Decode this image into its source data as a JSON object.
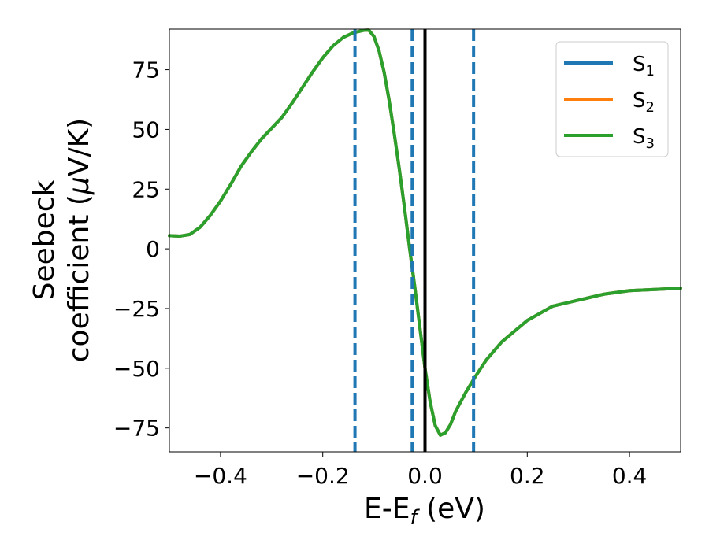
{
  "chart_data": {
    "type": "line",
    "xlabel": {
      "main": "E-E",
      "sub": "f",
      "tail": " (eV)"
    },
    "ylabel": {
      "line1": "Seebeck",
      "line2_pre": "coefficient  (",
      "line2_mu": "μ",
      "line2_post": "V/K)"
    },
    "xlim": [
      -0.5,
      0.5
    ],
    "ylim": [
      -85,
      92
    ],
    "x_ticks": [
      -0.4,
      -0.2,
      0.0,
      0.2,
      0.4
    ],
    "x_tick_labels": [
      "−0.4",
      "−0.2",
      "0.0",
      "0.2",
      "0.4"
    ],
    "y_ticks": [
      75,
      50,
      25,
      0,
      -25,
      -50,
      -75
    ],
    "y_tick_labels": [
      "75",
      "50",
      "25",
      "0",
      "−25",
      "−50",
      "−75"
    ],
    "grid": false,
    "legend_position": "top-right",
    "series": [
      {
        "name": "S",
        "subscript": "1",
        "color": "#1f77b4",
        "x": [
          -0.5,
          -0.48,
          -0.46,
          -0.44,
          -0.42,
          -0.4,
          -0.38,
          -0.36,
          -0.34,
          -0.32,
          -0.3,
          -0.28,
          -0.26,
          -0.24,
          -0.22,
          -0.2,
          -0.18,
          -0.16,
          -0.14,
          -0.12,
          -0.11,
          -0.1,
          -0.09,
          -0.08,
          -0.07,
          -0.06,
          -0.05,
          -0.04,
          -0.03,
          -0.02,
          -0.01,
          0.0,
          0.01,
          0.02,
          0.03,
          0.04,
          0.05,
          0.06,
          0.08,
          0.1,
          0.12,
          0.15,
          0.2,
          0.25,
          0.3,
          0.35,
          0.4,
          0.45,
          0.5
        ],
        "y": [
          5.5,
          5.3,
          6.0,
          9.0,
          14.0,
          20.0,
          27.0,
          34.5,
          40.5,
          46.0,
          50.5,
          55.0,
          61.0,
          67.5,
          74.0,
          80.0,
          85.0,
          88.5,
          90.5,
          91.5,
          91.6,
          89.0,
          83.0,
          74.0,
          62.0,
          48.0,
          33.0,
          17.0,
          0.0,
          -16.0,
          -33.0,
          -50.0,
          -64.0,
          -74.0,
          -78.0,
          -77.0,
          -73.5,
          -68.0,
          -60.0,
          -53.0,
          -46.5,
          -39.0,
          -30.0,
          -24.0,
          -21.5,
          -19.0,
          -17.5,
          -17.0,
          -16.5
        ]
      },
      {
        "name": "S",
        "subscript": "2",
        "color": "#ff7f0e",
        "x": [
          -0.5,
          -0.48,
          -0.46,
          -0.44,
          -0.42,
          -0.4,
          -0.38,
          -0.36,
          -0.34,
          -0.32,
          -0.3,
          -0.28,
          -0.26,
          -0.24,
          -0.22,
          -0.2,
          -0.18,
          -0.16,
          -0.14,
          -0.12,
          -0.11,
          -0.1,
          -0.09,
          -0.08,
          -0.07,
          -0.06,
          -0.05,
          -0.04,
          -0.03,
          -0.02,
          -0.01,
          0.0,
          0.01,
          0.02,
          0.03,
          0.04,
          0.05,
          0.06,
          0.08,
          0.1,
          0.12,
          0.15,
          0.2,
          0.25,
          0.3,
          0.35,
          0.4,
          0.45,
          0.5
        ],
        "y": [
          5.5,
          5.3,
          6.0,
          9.0,
          14.0,
          20.0,
          27.0,
          34.5,
          40.5,
          46.0,
          50.5,
          55.0,
          61.0,
          67.5,
          74.0,
          80.0,
          85.0,
          88.5,
          90.5,
          91.5,
          91.6,
          89.0,
          83.0,
          74.0,
          62.0,
          48.0,
          33.0,
          17.0,
          0.0,
          -16.0,
          -33.0,
          -50.0,
          -64.0,
          -74.0,
          -78.0,
          -77.0,
          -73.5,
          -68.0,
          -60.0,
          -53.0,
          -46.5,
          -39.0,
          -30.0,
          -24.0,
          -21.5,
          -19.0,
          -17.5,
          -17.0,
          -16.5
        ]
      },
      {
        "name": "S",
        "subscript": "3",
        "color": "#2ca02c",
        "x": [
          -0.5,
          -0.48,
          -0.46,
          -0.44,
          -0.42,
          -0.4,
          -0.38,
          -0.36,
          -0.34,
          -0.32,
          -0.3,
          -0.28,
          -0.26,
          -0.24,
          -0.22,
          -0.2,
          -0.18,
          -0.16,
          -0.14,
          -0.12,
          -0.11,
          -0.1,
          -0.09,
          -0.08,
          -0.07,
          -0.06,
          -0.05,
          -0.04,
          -0.03,
          -0.02,
          -0.01,
          0.0,
          0.01,
          0.02,
          0.03,
          0.04,
          0.05,
          0.06,
          0.08,
          0.1,
          0.12,
          0.15,
          0.2,
          0.25,
          0.3,
          0.35,
          0.4,
          0.45,
          0.5
        ],
        "y": [
          5.5,
          5.3,
          6.0,
          9.0,
          14.0,
          20.0,
          27.0,
          34.5,
          40.5,
          46.0,
          50.5,
          55.0,
          61.0,
          67.5,
          74.0,
          80.0,
          85.0,
          88.5,
          90.5,
          91.5,
          91.6,
          89.0,
          83.0,
          74.0,
          62.0,
          48.0,
          33.0,
          17.0,
          0.0,
          -16.0,
          -33.0,
          -50.0,
          -64.0,
          -74.0,
          -78.0,
          -77.0,
          -73.5,
          -68.0,
          -60.0,
          -53.0,
          -46.5,
          -39.0,
          -30.0,
          -24.0,
          -21.5,
          -19.0,
          -17.5,
          -17.0,
          -16.5
        ]
      }
    ],
    "vertical_lines": [
      {
        "x": -0.137,
        "style": "dashed",
        "color": "#1f77b4"
      },
      {
        "x": -0.025,
        "style": "dashed",
        "color": "#1f77b4"
      },
      {
        "x": 0.0,
        "style": "solid",
        "color": "#000000"
      },
      {
        "x": 0.095,
        "style": "dashed",
        "color": "#1f77b4"
      }
    ]
  }
}
